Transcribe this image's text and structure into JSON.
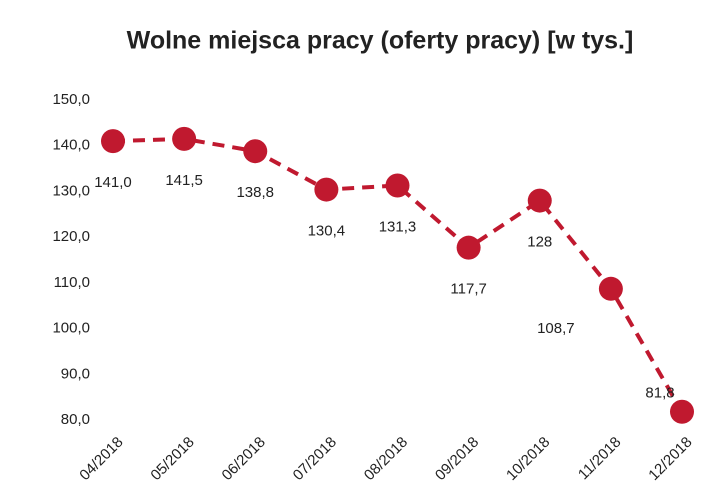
{
  "chart_data": {
    "type": "line",
    "title": "Wolne miejsca pracy (oferty pracy) [w tys.]",
    "categories": [
      "04/2018",
      "05/2018",
      "06/2018",
      "07/2018",
      "08/2018",
      "09/2018",
      "10/2018",
      "11/2018",
      "12/2018"
    ],
    "series": [
      {
        "color": "#c0192f",
        "values": [
          141.0,
          141.5,
          138.8,
          130.4,
          131.3,
          117.7,
          128,
          108.7,
          81.8
        ],
        "value_labels": [
          "141,0",
          "141,5",
          "138,8",
          "130,4",
          "131,3",
          "117,7",
          "128",
          "108,7",
          "81,8"
        ]
      }
    ],
    "ylim": [
      80,
      150
    ],
    "yticks": [
      {
        "value": 80,
        "label": "80,0"
      },
      {
        "value": 90,
        "label": "90,0"
      },
      {
        "value": 100,
        "label": "100,0"
      },
      {
        "value": 110,
        "label": "110,0"
      },
      {
        "value": 120,
        "label": "120,0"
      },
      {
        "value": 130,
        "label": "130,0"
      },
      {
        "value": 140,
        "label": "140,0"
      },
      {
        "value": 150,
        "label": "150,0"
      }
    ],
    "grid": false,
    "dashed": true
  }
}
